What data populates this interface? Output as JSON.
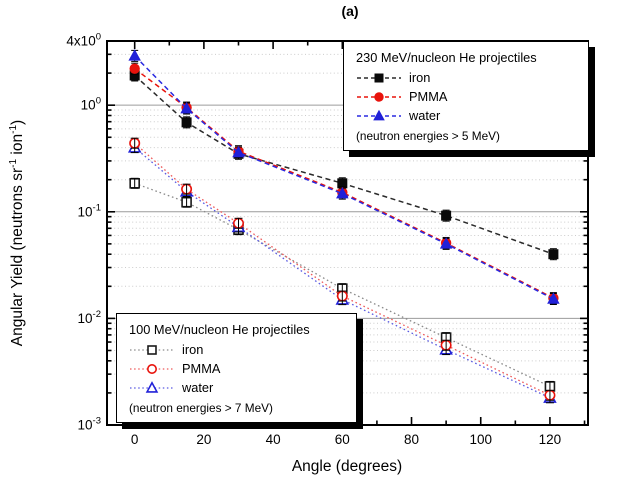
{
  "title": "(a)",
  "plot": {
    "xlabel": "Angle (degrees)",
    "ylabel_parts": [
      {
        "t": "Angular Yield (neutrons sr"
      },
      {
        "t": "-1",
        "sup": true
      },
      {
        "t": " ion"
      },
      {
        "t": "-1",
        "sup": true
      },
      {
        "t": ")"
      }
    ],
    "x_ticks": [
      0,
      20,
      40,
      60,
      80,
      100,
      120
    ],
    "x_minor_ticks": [
      10,
      30,
      50,
      70,
      90,
      110,
      130
    ],
    "xlim": [
      -8,
      131
    ],
    "ylim": [
      0.001,
      4
    ],
    "y_tick_labels": [
      {
        "base": "4x10",
        "exp": "0",
        "v": 4
      },
      {
        "base": "10",
        "exp": "0",
        "v": 1
      },
      {
        "base": "10",
        "exp": "-1",
        "v": 0.1
      },
      {
        "base": "10",
        "exp": "-2",
        "v": 0.01
      },
      {
        "base": "10",
        "exp": "-3",
        "v": 0.001
      }
    ],
    "colors": {
      "iron": "#0a0a0a",
      "pmma": "#e8130c",
      "water": "#2121d8",
      "major_grid": "#9c9c9c",
      "minor_grid": "#cccccc"
    }
  },
  "legends": [
    {
      "id": "legend-230",
      "title": "230 MeV/nucleon He projectiles",
      "note": "(neutron energies > 5 MeV)",
      "entries": [
        {
          "series": "iron-230",
          "label": "iron",
          "marker": "square",
          "fill": "filled",
          "color": "#0a0a0a",
          "line_color": "#2a2a2a",
          "line_style": "dashed"
        },
        {
          "series": "pmma-230",
          "label": "PMMA",
          "marker": "circle",
          "fill": "filled",
          "color": "#e8130c",
          "line_color": "#e8130c",
          "line_style": "dashed"
        },
        {
          "series": "water-230",
          "label": "water",
          "marker": "triangle",
          "fill": "filled",
          "color": "#2121d8",
          "line_color": "#2a2ae0",
          "line_style": "dashed"
        }
      ]
    },
    {
      "id": "legend-100",
      "title": "100 MeV/nucleon He projectiles",
      "note": "(neutron energies > 7 MeV)",
      "entries": [
        {
          "series": "iron-100",
          "label": "iron",
          "marker": "square",
          "fill": "open",
          "color": "#1a1a1a",
          "line_color": "#8a8a8a",
          "line_style": "dotted"
        },
        {
          "series": "pmma-100",
          "label": "PMMA",
          "marker": "circle",
          "fill": "open",
          "color": "#e8130c",
          "line_color": "#ee5a5a",
          "line_style": "dotted"
        },
        {
          "series": "water-100",
          "label": "water",
          "marker": "triangle",
          "fill": "open",
          "color": "#2121d8",
          "line_color": "#5a5ae2",
          "line_style": "dotted"
        }
      ]
    }
  ],
  "chart_data": {
    "type": "line",
    "title": "(a)",
    "xlabel": "Angle (degrees)",
    "ylabel": "Angular Yield (neutrons sr^-1 ion^-1)",
    "yscale": "log",
    "xlim": [
      -8,
      131
    ],
    "ylim": [
      0.001,
      4
    ],
    "grid": "horizontal: solid at decades, dotted at log minors",
    "legend_position": [
      "upper right",
      "lower left"
    ],
    "series": [
      {
        "name": "iron (230 MeV/nucleon He, >5 MeV)",
        "marker": "filled-square",
        "color": "#0a0a0a",
        "line_color": "#2a2a2a",
        "line": "dashed",
        "x": [
          0,
          15,
          30,
          60,
          90,
          121
        ],
        "y": [
          1.9,
          0.69,
          0.35,
          0.185,
          0.092,
          0.04
        ]
      },
      {
        "name": "PMMA (230 MeV/nucleon He, >5 MeV)",
        "marker": "filled-circle",
        "color": "#e8130c",
        "line_color": "#e8130c",
        "line": "dashed",
        "x": [
          0,
          15,
          30,
          60,
          90,
          121
        ],
        "y": [
          2.2,
          0.95,
          0.37,
          0.152,
          0.051,
          0.0155
        ]
      },
      {
        "name": "water (230 MeV/nucleon He, >5 MeV)",
        "marker": "filled-triangle",
        "color": "#2121d8",
        "line_color": "#2a2ae0",
        "line": "dashed",
        "x": [
          0,
          15,
          30,
          60,
          90,
          121
        ],
        "y": [
          2.9,
          0.93,
          0.36,
          0.148,
          0.05,
          0.0152
        ]
      },
      {
        "name": "iron (100 MeV/nucleon He, >7 MeV)",
        "marker": "open-square",
        "color": "#1a1a1a",
        "line_color": "#8a8a8a",
        "line": "dotted",
        "x": [
          0,
          15,
          30,
          60,
          90,
          120
        ],
        "y": [
          0.185,
          0.123,
          0.068,
          0.019,
          0.0066,
          0.0023
        ]
      },
      {
        "name": "PMMA (100 MeV/nucleon He, >7 MeV)",
        "marker": "open-circle",
        "color": "#e8130c",
        "line_color": "#ee5a5a",
        "line": "dotted",
        "x": [
          0,
          15,
          30,
          60,
          90,
          120
        ],
        "y": [
          0.44,
          0.163,
          0.078,
          0.0162,
          0.0056,
          0.0019
        ]
      },
      {
        "name": "water (100 MeV/nucleon He, >7 MeV)",
        "marker": "open-triangle",
        "color": "#2121d8",
        "line_color": "#5a5ae2",
        "line": "dotted",
        "x": [
          0,
          15,
          30,
          60,
          90,
          120
        ],
        "y": [
          0.4,
          0.155,
          0.072,
          0.015,
          0.0051,
          0.0018
        ]
      }
    ]
  }
}
